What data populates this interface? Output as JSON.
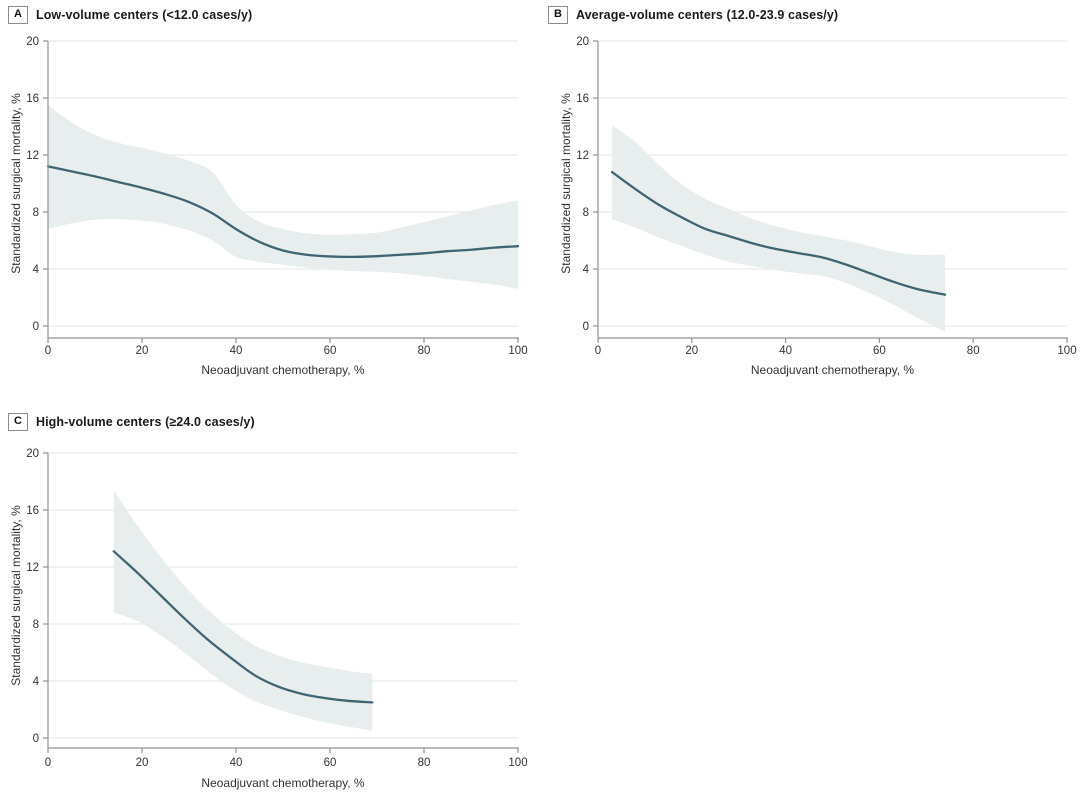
{
  "colors": {
    "line": "#3d6572",
    "band": "#e8edee",
    "grid": "#e3e4e5",
    "axis": "#8f9497",
    "tick_text": "#333333",
    "title_text": "#1a1a1a"
  },
  "chart_data": [
    {
      "type": "line",
      "panel_label": "A",
      "title": "Low-volume centers (<12.0 cases/y)",
      "xlabel": "Neoadjuvant chemotherapy, %",
      "ylabel": "Standardized surgical mortality, %",
      "xlim": [
        0,
        100
      ],
      "ylim": [
        0,
        20
      ],
      "x_ticks": [
        0,
        20,
        40,
        60,
        80,
        100
      ],
      "y_ticks": [
        0,
        4,
        8,
        12,
        16,
        20
      ],
      "grid": "horizontal",
      "legend": "none",
      "x": [
        0,
        5,
        10,
        15,
        20,
        25,
        30,
        35,
        40,
        45,
        50,
        55,
        60,
        65,
        70,
        75,
        80,
        85,
        90,
        95,
        100
      ],
      "line": [
        11.2,
        10.85,
        10.5,
        10.1,
        9.7,
        9.25,
        8.7,
        7.9,
        6.8,
        5.9,
        5.3,
        5.0,
        4.88,
        4.85,
        4.9,
        5.0,
        5.1,
        5.25,
        5.35,
        5.5,
        5.6
      ],
      "ci_upper": [
        15.5,
        14.3,
        13.4,
        12.85,
        12.5,
        12.1,
        11.6,
        10.8,
        8.5,
        7.3,
        6.8,
        6.5,
        6.4,
        6.45,
        6.55,
        6.9,
        7.3,
        7.7,
        8.1,
        8.5,
        8.8
      ],
      "ci_lower": [
        6.8,
        7.2,
        7.45,
        7.5,
        7.4,
        7.15,
        6.7,
        6.0,
        4.85,
        4.5,
        4.3,
        4.1,
        3.95,
        3.85,
        3.8,
        3.7,
        3.5,
        3.3,
        3.1,
        2.9,
        2.6
      ]
    },
    {
      "type": "line",
      "panel_label": "B",
      "title": "Average-volume centers (12.0-23.9 cases/y)",
      "xlabel": "Neoadjuvant chemotherapy, %",
      "ylabel": "Standardized surgical mortality, %",
      "xlim": [
        0,
        100
      ],
      "ylim": [
        0,
        20
      ],
      "x_ticks": [
        0,
        20,
        40,
        60,
        80,
        100
      ],
      "y_ticks": [
        0,
        4,
        8,
        12,
        16,
        20
      ],
      "grid": "horizontal",
      "legend": "none",
      "x": [
        3,
        8,
        13,
        18,
        23,
        28,
        33,
        38,
        43,
        48,
        53,
        58,
        63,
        68,
        74
      ],
      "line": [
        10.8,
        9.6,
        8.5,
        7.6,
        6.8,
        6.3,
        5.8,
        5.4,
        5.1,
        4.8,
        4.3,
        3.7,
        3.1,
        2.6,
        2.2
      ],
      "ci_upper": [
        14.1,
        12.9,
        11.3,
        9.9,
        8.9,
        8.2,
        7.5,
        7.0,
        6.6,
        6.3,
        6.0,
        5.6,
        5.2,
        5.0,
        5.0
      ],
      "ci_lower": [
        7.5,
        6.9,
        6.2,
        5.6,
        5.0,
        4.5,
        4.2,
        3.9,
        3.7,
        3.5,
        3.0,
        2.3,
        1.5,
        0.6,
        -0.4
      ]
    },
    {
      "type": "line",
      "panel_label": "C",
      "title": "High-volume centers (≥24.0 cases/y)",
      "xlabel": "Neoadjuvant chemotherapy, %",
      "ylabel": "Standardized surgical mortality, %",
      "xlim": [
        0,
        100
      ],
      "ylim": [
        0,
        20
      ],
      "x_ticks": [
        0,
        20,
        40,
        60,
        80,
        100
      ],
      "y_ticks": [
        0,
        4,
        8,
        12,
        16,
        20
      ],
      "grid": "horizontal",
      "legend": "none",
      "x": [
        14,
        19,
        24,
        29,
        34,
        39,
        44,
        49,
        54,
        59,
        64,
        69
      ],
      "line": [
        13.1,
        11.6,
        10.0,
        8.4,
        6.9,
        5.6,
        4.4,
        3.6,
        3.1,
        2.8,
        2.6,
        2.5
      ],
      "ci_upper": [
        17.4,
        14.9,
        12.7,
        10.7,
        9.0,
        7.6,
        6.5,
        5.8,
        5.3,
        5.0,
        4.7,
        4.5
      ],
      "ci_lower": [
        8.8,
        8.2,
        7.2,
        6.0,
        4.7,
        3.5,
        2.6,
        2.0,
        1.5,
        1.1,
        0.8,
        0.5
      ]
    }
  ]
}
